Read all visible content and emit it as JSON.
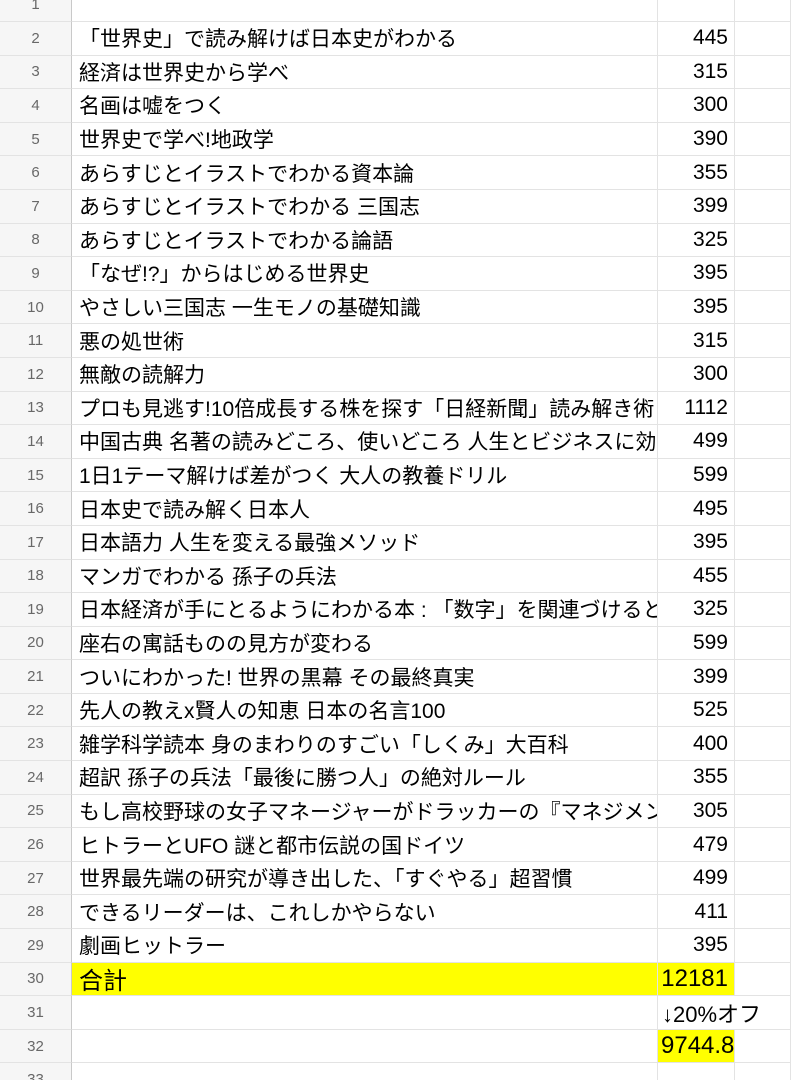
{
  "app": {
    "kind": "spreadsheet-grid",
    "colors": {
      "highlight": "#ffff00",
      "row_header_bg": "#f6f6f6",
      "row_header_text": "#686868",
      "grid_line": "#e3e3e3",
      "row_header_line": "#c9c9c9",
      "cell_text": "#000000"
    },
    "discount_note": "↓20%オフ",
    "total_label": "合計",
    "total_value": "12181",
    "discounted_total": "9744.8"
  },
  "sheet": {
    "rows": [
      {
        "n": "1",
        "title": "",
        "price": ""
      },
      {
        "n": "2",
        "title": "「世界史」で読み解けば日本史がわかる",
        "price": "445"
      },
      {
        "n": "3",
        "title": "経済は世界史から学べ",
        "price": "315"
      },
      {
        "n": "4",
        "title": "名画は嘘をつく",
        "price": "300"
      },
      {
        "n": "5",
        "title": "世界史で学べ!地政学",
        "price": "390"
      },
      {
        "n": "6",
        "title": "あらすじとイラストでわかる資本論",
        "price": "355"
      },
      {
        "n": "7",
        "title": "あらすじとイラストでわかる 三国志",
        "price": "399"
      },
      {
        "n": "8",
        "title": "あらすじとイラストでわかる論語",
        "price": "325"
      },
      {
        "n": "9",
        "title": "「なぜ!?」からはじめる世界史",
        "price": "395"
      },
      {
        "n": "10",
        "title": "やさしい三国志 一生モノの基礎知識",
        "price": "395"
      },
      {
        "n": "11",
        "title": "悪の処世術",
        "price": "315"
      },
      {
        "n": "12",
        "title": "無敵の読解力",
        "price": "300"
      },
      {
        "n": "13",
        "title": "プロも見逃す!10倍成長する株を探す「日経新聞」読み解き術",
        "price": "1112"
      },
      {
        "n": "14",
        "title": "中国古典 名著の読みどころ、使いどころ 人生とビジネスに効",
        "price": "499",
        "clipped": true
      },
      {
        "n": "15",
        "title": "1日1テーマ解けば差がつく 大人の教養ドリル",
        "price": "599"
      },
      {
        "n": "16",
        "title": "日本史で読み解く日本人",
        "price": "495"
      },
      {
        "n": "17",
        "title": "日本語力 人生を変える最強メソッド",
        "price": "395"
      },
      {
        "n": "18",
        "title": "マンガでわかる 孫子の兵法",
        "price": "455"
      },
      {
        "n": "19",
        "title": "日本経済が手にとるようにわかる本 : 「数字」を関連づけると",
        "price": "325",
        "clipped": true
      },
      {
        "n": "20",
        "title": "座右の寓話ものの見方が変わる",
        "price": "599"
      },
      {
        "n": "21",
        "title": "ついにわかった! 世界の黒幕 その最終真実",
        "price": "399"
      },
      {
        "n": "22",
        "title": "先人の教えx賢人の知恵 日本の名言100",
        "price": "525"
      },
      {
        "n": "23",
        "title": "雑学科学読本 身のまわりのすごい「しくみ」大百科",
        "price": "400"
      },
      {
        "n": "24",
        "title": "超訳 孫子の兵法「最後に勝つ人」の絶対ルール",
        "price": "355"
      },
      {
        "n": "25",
        "title": "もし高校野球の女子マネージャーがドラッカーの『マネジメン",
        "price": "305",
        "clipped": true
      },
      {
        "n": "26",
        "title": "ヒトラーとUFO 謎と都市伝説の国ドイツ",
        "price": "479"
      },
      {
        "n": "27",
        "title": "世界最先端の研究が導き出した、「すぐやる」超習慣",
        "price": "499"
      },
      {
        "n": "28",
        "title": "できるリーダーは、これしかやらない",
        "price": "411"
      },
      {
        "n": "29",
        "title": "劇画ヒットラー",
        "price": "395"
      },
      {
        "n": "30",
        "title": "合計",
        "price": "12181",
        "title_bg": true,
        "price_bg": true,
        "large": true
      },
      {
        "n": "31",
        "title": "",
        "price": "↓20%オフ",
        "price_spill": true
      },
      {
        "n": "32",
        "title": "",
        "price": "9744.8",
        "price_bg": true,
        "price_left": true,
        "large": true
      },
      {
        "n": "33",
        "title": "",
        "price": ""
      }
    ]
  }
}
